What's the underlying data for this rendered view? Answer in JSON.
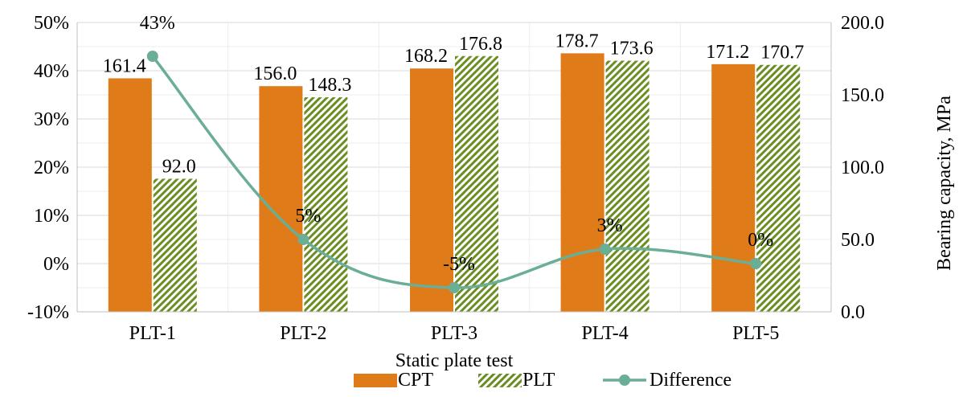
{
  "chart_data": {
    "type": "bar",
    "categories": [
      "PLT-1",
      "PLT-2",
      "PLT-3",
      "PLT-4",
      "PLT-5"
    ],
    "xlabel": "Static plate test",
    "ylabel_right": "Bearing capacity, MPa",
    "y_left": {
      "ticks": [
        "50%",
        "40%",
        "30%",
        "20%",
        "10%",
        "0%",
        "-10%"
      ],
      "range": [
        -10,
        50
      ]
    },
    "y_right": {
      "ticks": [
        "200.0",
        "150.0",
        "100.0",
        "50.0",
        "0.0"
      ],
      "range": [
        0,
        200
      ]
    },
    "series": [
      {
        "name": "CPT",
        "kind": "bar",
        "axis": "right",
        "color": "#E07B1A",
        "values": [
          161.4,
          156.0,
          168.2,
          178.7,
          171.2
        ],
        "labels": [
          "161.4",
          "156.0",
          "168.2",
          "178.7",
          "171.2"
        ]
      },
      {
        "name": "PLT",
        "kind": "bar",
        "axis": "right",
        "pattern": "diagonal-hatch",
        "color": "#6B8E23",
        "values": [
          92.0,
          148.3,
          176.8,
          173.6,
          170.7
        ],
        "labels": [
          "92.0",
          "148.3",
          "176.8",
          "173.6",
          "170.7"
        ]
      },
      {
        "name": "Difference",
        "kind": "line",
        "axis": "left",
        "color": "#6AAE96",
        "values": [
          43,
          5,
          -5,
          3,
          0
        ],
        "labels": [
          "43%",
          "5%",
          "-5%",
          "3%",
          "0%"
        ]
      }
    ],
    "grid": true,
    "legend": "bottom"
  }
}
